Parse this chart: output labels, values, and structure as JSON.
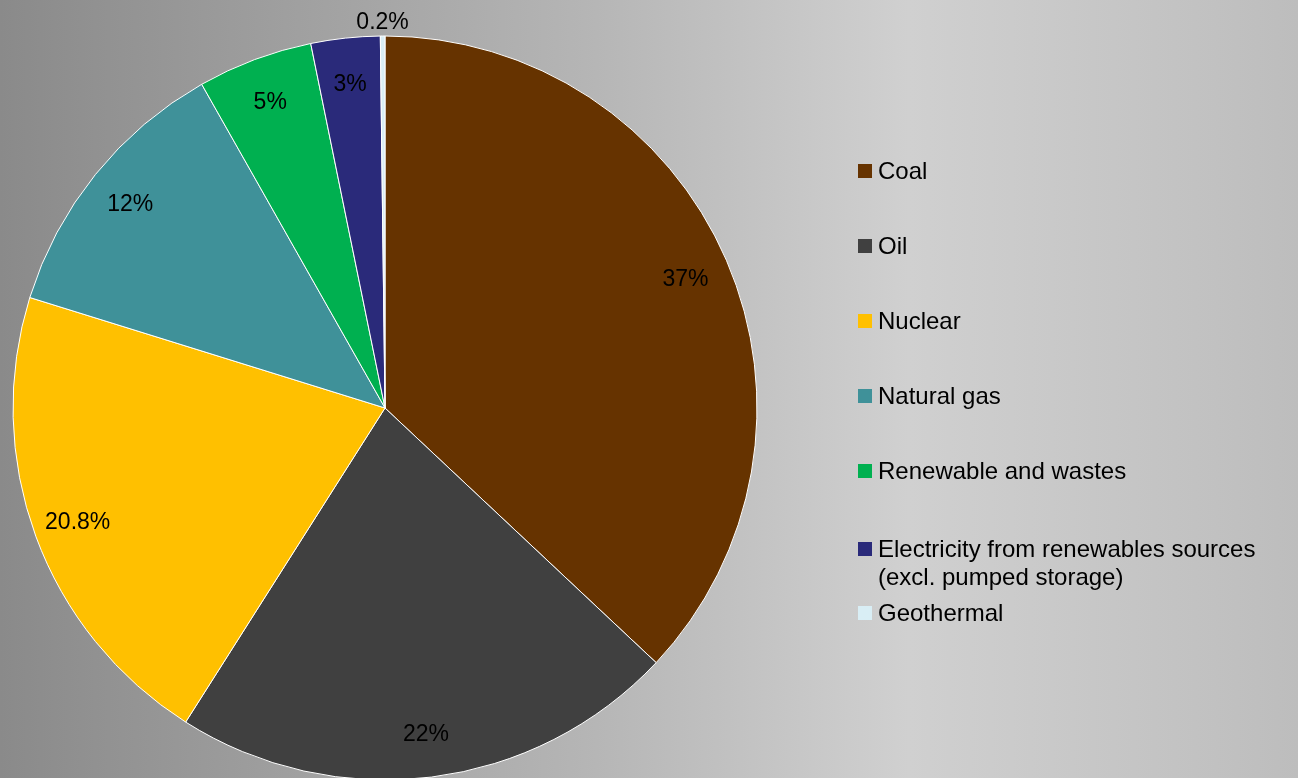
{
  "chart_data": {
    "type": "pie",
    "categories": [
      "Coal",
      "Oil",
      "Nuclear",
      "Natural gas",
      "Renewable and wastes",
      "Electricity from renewables sources (excl. pumped storage)",
      "Geothermal"
    ],
    "values": [
      37,
      22,
      20.8,
      12,
      5,
      3,
      0.2
    ],
    "colors": [
      "#663300",
      "#404040",
      "#ffc000",
      "#3f9199",
      "#00b050",
      "#2a2a7a",
      "#d9eef5"
    ],
    "value_labels": [
      "37%",
      "22%",
      "20.8%",
      "12%",
      "5%",
      "3%",
      "0.2%"
    ],
    "legend": "right"
  }
}
